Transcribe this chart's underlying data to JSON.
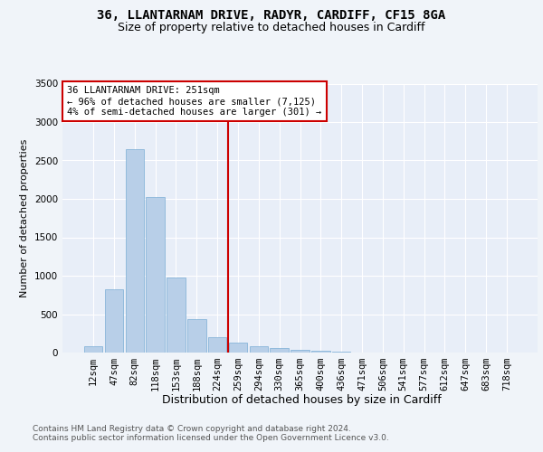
{
  "title1": "36, LLANTARNAM DRIVE, RADYR, CARDIFF, CF15 8GA",
  "title2": "Size of property relative to detached houses in Cardiff",
  "xlabel": "Distribution of detached houses by size in Cardiff",
  "ylabel": "Number of detached properties",
  "bar_labels": [
    "12sqm",
    "47sqm",
    "82sqm",
    "118sqm",
    "153sqm",
    "188sqm",
    "224sqm",
    "259sqm",
    "294sqm",
    "330sqm",
    "365sqm",
    "400sqm",
    "436sqm",
    "471sqm",
    "506sqm",
    "541sqm",
    "577sqm",
    "612sqm",
    "647sqm",
    "683sqm",
    "718sqm"
  ],
  "bar_values": [
    80,
    820,
    2650,
    2020,
    980,
    440,
    200,
    130,
    80,
    55,
    30,
    20,
    10,
    5,
    3,
    2,
    1,
    1,
    0,
    0,
    0
  ],
  "bar_color": "#b8cfe8",
  "bar_edge_color": "#7aadd4",
  "ylim_max": 3500,
  "yticks": [
    0,
    500,
    1000,
    1500,
    2000,
    2500,
    3000,
    3500
  ],
  "vline_index": 6.5,
  "vline_color": "#cc0000",
  "annot_line1": "36 LLANTARNAM DRIVE: 251sqm",
  "annot_line2": "← 96% of detached houses are smaller (7,125)",
  "annot_line3": "4% of semi-detached houses are larger (301) →",
  "footer1": "Contains HM Land Registry data © Crown copyright and database right 2024.",
  "footer2": "Contains public sector information licensed under the Open Government Licence v3.0.",
  "fig_facecolor": "#f0f4f9",
  "ax_facecolor": "#e8eef8",
  "grid_color": "#ffffff",
  "title1_fontsize": 10,
  "title2_fontsize": 9,
  "xlabel_fontsize": 9,
  "ylabel_fontsize": 8,
  "tick_fontsize": 7.5,
  "annot_fontsize": 7.5,
  "footer_fontsize": 6.5
}
